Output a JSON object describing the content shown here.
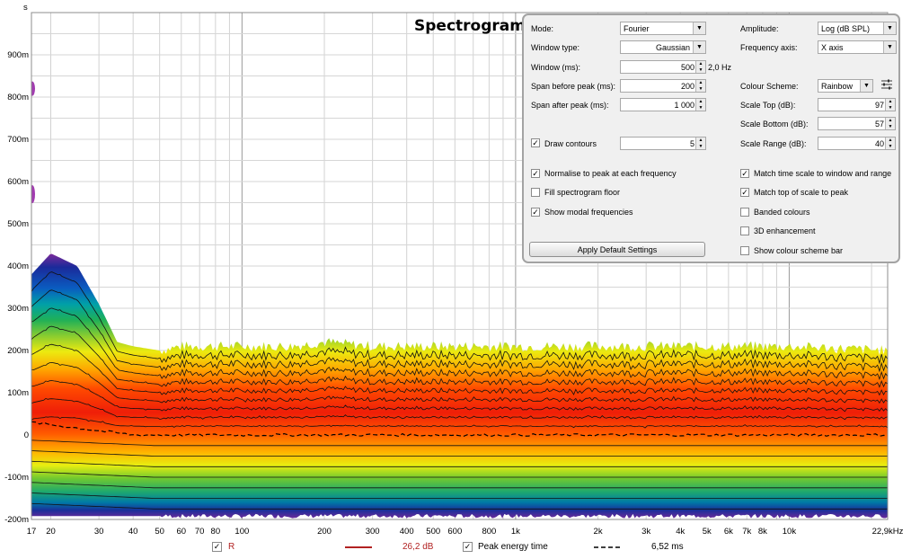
{
  "chart_data": {
    "type": "heatmap",
    "title": "Spectrogram",
    "ylabel": "s",
    "xlabel": "",
    "x_scale": "log",
    "xlim": [
      17,
      22900
    ],
    "ylim": [
      -0.2,
      1.0
    ],
    "grid": true,
    "x_ticks": [
      "17",
      "20",
      "30",
      "40",
      "50",
      "60",
      "70",
      "80",
      "100",
      "200",
      "300",
      "400",
      "500",
      "600",
      "800",
      "1k",
      "2k",
      "3k",
      "4k",
      "5k",
      "6k",
      "7k",
      "8k",
      "10k",
      "22,9kHz"
    ],
    "x_tick_values": [
      17,
      20,
      30,
      40,
      50,
      60,
      70,
      80,
      100,
      200,
      300,
      400,
      500,
      600,
      800,
      1000,
      2000,
      3000,
      4000,
      5000,
      6000,
      7000,
      8000,
      10000,
      22900
    ],
    "y_ticks": [
      "900m",
      "800m",
      "700m",
      "600m",
      "500m",
      "400m",
      "300m",
      "200m",
      "100m",
      "0",
      "-100m",
      "-200m"
    ],
    "y_tick_values": [
      0.9,
      0.8,
      0.7,
      0.6,
      0.5,
      0.4,
      0.3,
      0.2,
      0.1,
      0,
      -0.1,
      -0.2
    ],
    "colour_scheme": "Rainbow",
    "top_edge_s": {
      "freq_hz": [
        17,
        20,
        25,
        30,
        35,
        40,
        50,
        60,
        80,
        100,
        150,
        200,
        300,
        500,
        1000,
        2000,
        5000,
        10000,
        22900
      ],
      "time_s": [
        0.38,
        0.43,
        0.4,
        0.31,
        0.22,
        0.21,
        0.2,
        0.21,
        0.21,
        0.21,
        0.21,
        0.22,
        0.21,
        0.21,
        0.21,
        0.21,
        0.21,
        0.21,
        0.2
      ]
    },
    "ridge_time_s": 0.0,
    "peak_energy_time_s": 0.0
  },
  "controls": {
    "mode": {
      "label": "Mode:",
      "value": "Fourier"
    },
    "window_type": {
      "label": "Window type:",
      "value": "Gaussian"
    },
    "window_ms": {
      "label": "Window (ms):",
      "value": "500",
      "unit": "2,0 Hz"
    },
    "span_before": {
      "label": "Span before peak (ms):",
      "value": "200"
    },
    "span_after": {
      "label": "Span after peak (ms):",
      "value": "1 000"
    },
    "draw_contours": {
      "label": "Draw contours",
      "value": "5",
      "checked": true
    },
    "normalise": {
      "label": "Normalise to peak at each frequency",
      "checked": true
    },
    "fill_floor": {
      "label": "Fill spectrogram floor",
      "checked": false
    },
    "modal": {
      "label": "Show modal frequencies",
      "checked": true
    },
    "apply": "Apply Default Settings",
    "amplitude": {
      "label": "Amplitude:",
      "value": "Log (dB SPL)"
    },
    "freq_axis": {
      "label": "Frequency axis:",
      "value": "X axis"
    },
    "colour_scheme": {
      "label": "Colour Scheme:",
      "value": "Rainbow"
    },
    "scale_top": {
      "label": "Scale Top (dB):",
      "value": "97"
    },
    "scale_bottom": {
      "label": "Scale Bottom (dB):",
      "value": "57"
    },
    "scale_range": {
      "label": "Scale Range (dB):",
      "value": "40"
    },
    "match_time": {
      "label": "Match time scale to window and range",
      "checked": true
    },
    "match_top": {
      "label": "Match top of scale to peak",
      "checked": true
    },
    "banded": {
      "label": "Banded colours",
      "checked": false
    },
    "enh3d": {
      "label": "3D enhancement",
      "checked": false
    },
    "show_bar": {
      "label": "Show colour scheme bar",
      "checked": false
    }
  },
  "legend": {
    "r": {
      "label": "R",
      "value": "26,2 dB",
      "checked": true,
      "color": "#b22222"
    },
    "peak": {
      "label": "Peak energy time",
      "value": "6,52 ms",
      "checked": true,
      "color": "#000000"
    }
  }
}
